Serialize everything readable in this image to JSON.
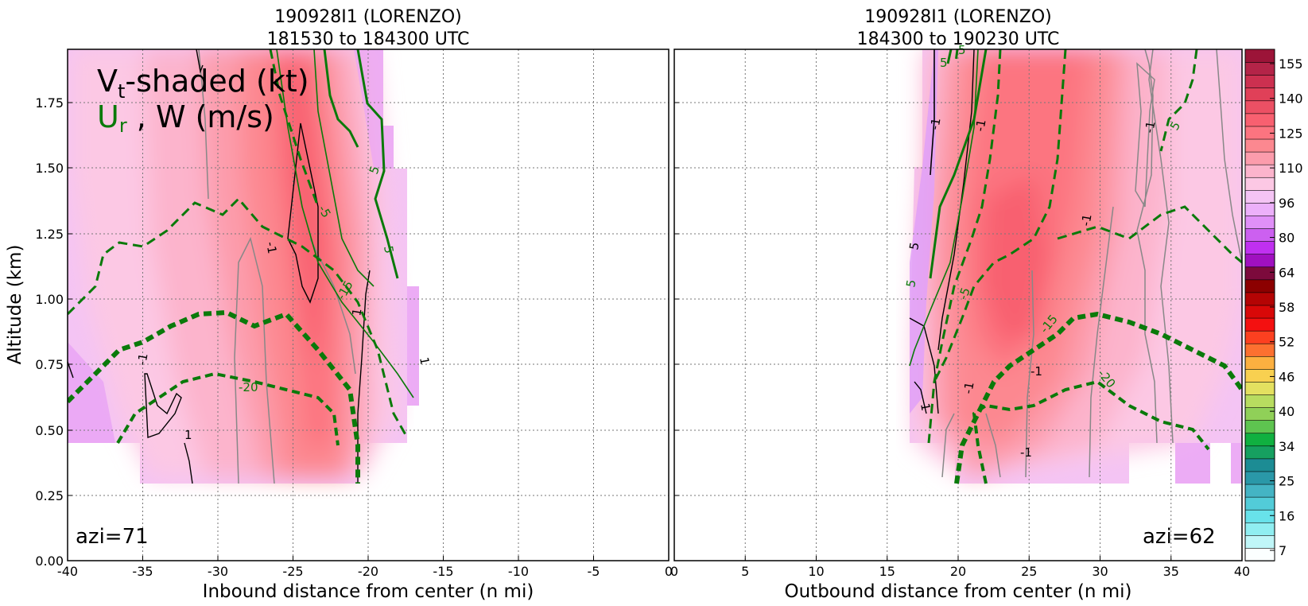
{
  "chart_data": [
    {
      "type": "contour",
      "panel": "inbound",
      "title_line1": "190928I1 (LORENZO)",
      "title_line2": "181530 to 184300 UTC",
      "xlabel": "Inbound distance from center (n mi)",
      "ylabel": "Altitude (km)",
      "xlim": [
        -40,
        0
      ],
      "ylim": [
        0,
        1.95
      ],
      "xticks": [
        "-40",
        "-35",
        "-30",
        "-25",
        "-20",
        "-15",
        "-10",
        "-5",
        "0"
      ],
      "yticks": [
        "0.00",
        "0.25",
        "0.50",
        "0.75",
        "1.00",
        "1.25",
        "1.50",
        "1.75"
      ],
      "grid": true,
      "azimuth_label": "azi=71",
      "legend_text_vt": "V",
      "legend_text_vt_sub": "t",
      "legend_text_vt_rest": "-shaded (kt)",
      "legend_text_ur": "U",
      "legend_text_ur_sub": "r",
      "legend_text_w": " , W (m/s)",
      "contour_labels": [
        "-20",
        "-15",
        "-5",
        "5",
        "5",
        "-1",
        "1",
        "1",
        "1",
        "-1"
      ]
    },
    {
      "type": "contour",
      "panel": "outbound",
      "title_line1": "190928I1 (LORENZO)",
      "title_line2": "184300 to 190230 UTC",
      "xlabel": "Outbound distance from center (n mi)",
      "xlim": [
        0,
        40
      ],
      "ylim": [
        0,
        1.95
      ],
      "xticks": [
        "0",
        "5",
        "10",
        "15",
        "20",
        "25",
        "30",
        "35",
        "40"
      ],
      "grid": true,
      "azimuth_label": "azi=62",
      "contour_labels": [
        "5",
        "5",
        "5",
        "-5",
        "-15",
        "-20",
        "-1",
        "-1",
        "-1",
        "-1",
        "-1",
        "1",
        "5",
        "-1",
        "-1",
        "5"
      ]
    }
  ],
  "colorbar": {
    "tick_labels": [
      "155",
      "140",
      "125",
      "110",
      "96",
      "80",
      "64",
      "58",
      "52",
      "46",
      "40",
      "34",
      "25",
      "16",
      "7"
    ],
    "colors": [
      "#fbffff",
      "#c0f6f8",
      "#90eef1",
      "#68e2ea",
      "#52ccd8",
      "#44b4c4",
      "#2a98a8",
      "#1c8c94",
      "#16a060",
      "#10b040",
      "#5ec450",
      "#90d058",
      "#b8dc60",
      "#e4e060",
      "#f8d050",
      "#fcb040",
      "#fc7030",
      "#fc4020",
      "#f41010",
      "#d80808",
      "#b40404",
      "#8c0000",
      "#7c0a3c",
      "#a010c0",
      "#c030f0",
      "#cc60f0",
      "#e090f8",
      "#ecb0fa",
      "#f4c4f4",
      "#fcc8e4",
      "#fcb4cc",
      "#fc9cac",
      "#fc8890",
      "#fc7480",
      "#f86070",
      "#ec5064",
      "#e04058",
      "#cc3050",
      "#b42448",
      "#9c1438"
    ]
  }
}
